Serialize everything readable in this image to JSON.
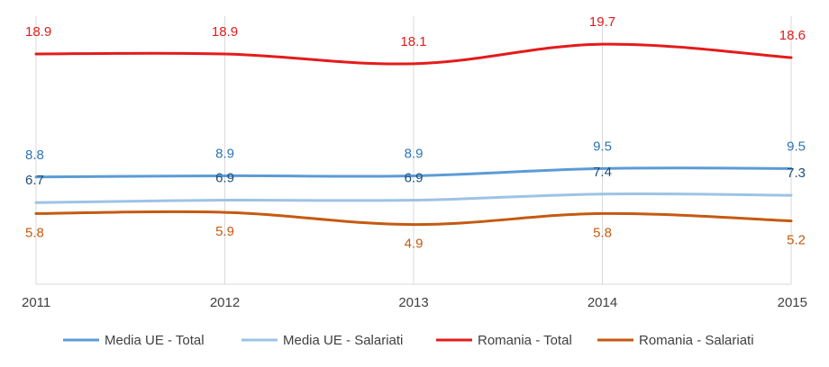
{
  "chart_data": {
    "type": "line",
    "x": [
      "2011",
      "2012",
      "2013",
      "2014",
      "2015"
    ],
    "ylim": [
      0,
      22
    ],
    "grid": {
      "vertical": true,
      "horizontal": false
    },
    "legend_position": "bottom",
    "series": [
      {
        "name": "Media UE - Total",
        "values": [
          8.8,
          8.9,
          8.9,
          9.5,
          9.5
        ],
        "labels": [
          "8.8",
          "8.9",
          "8.9",
          "9.5",
          "9.5"
        ],
        "color": "#5b9bd5",
        "label_color": "#2e75b6"
      },
      {
        "name": "Media UE - Salariati",
        "values": [
          6.7,
          6.9,
          6.9,
          7.4,
          7.3
        ],
        "labels": [
          "6.7",
          "6.9",
          "6.9",
          "7.4",
          "7.3"
        ],
        "color": "#9dc3e6",
        "label_color": "#1f4e79"
      },
      {
        "name": "Romania - Total",
        "values": [
          18.9,
          18.9,
          18.1,
          19.7,
          18.6
        ],
        "labels": [
          "18.9",
          "18.9",
          "18.1",
          "19.7",
          "18.6"
        ],
        "color": "#e41b1b",
        "label_color": "#e41b1b"
      },
      {
        "name": "Romania - Salariati",
        "values": [
          5.8,
          5.9,
          4.9,
          5.8,
          5.2
        ],
        "labels": [
          "5.8",
          "5.9",
          "4.9",
          "5.8",
          "5.2"
        ],
        "color": "#c55a11",
        "label_color": "#c55a11"
      }
    ]
  }
}
